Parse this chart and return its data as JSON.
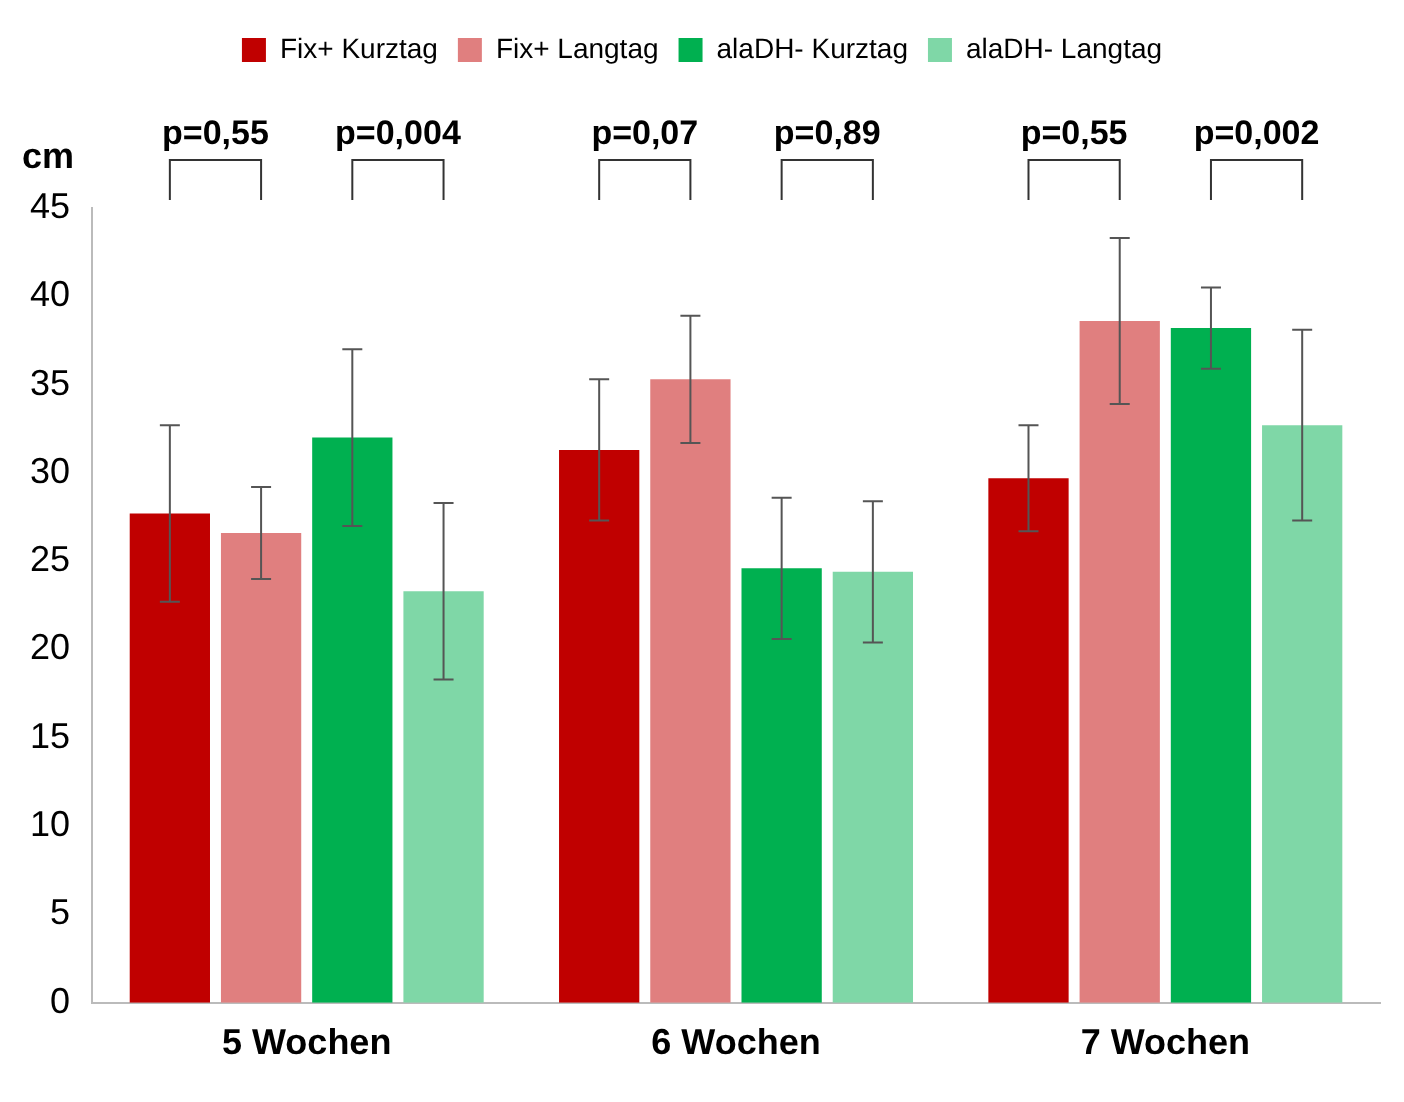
{
  "chart_data": {
    "type": "bar",
    "ylabel": "cm",
    "categories": [
      "5 Wochen",
      "6 Wochen",
      "7 Wochen"
    ],
    "series": [
      {
        "name": "Fix+ Kurztag",
        "color": "#c00000",
        "values": [
          27.7,
          31.3,
          29.7
        ],
        "errors": [
          5,
          4,
          3
        ]
      },
      {
        "name": "Fix+ Langtag",
        "color": "#e07f7f",
        "values": [
          26.6,
          35.3,
          38.6
        ],
        "errors": [
          2.6,
          3.6,
          4.7
        ]
      },
      {
        "name": "alaDH- Kurztag",
        "color": "#00b050",
        "values": [
          32,
          24.6,
          38.2
        ],
        "errors": [
          5,
          4,
          2.3
        ]
      },
      {
        "name": "alaDH- Langtag",
        "color": "#7fd7a7",
        "values": [
          23.3,
          24.4,
          32.7
        ],
        "errors": [
          5,
          4,
          5.4
        ]
      }
    ],
    "annotations": [
      "p=0,55",
      "p=0,004",
      "p=0,07",
      "p=0,89",
      "p=0,55",
      "p=0,002"
    ],
    "ylim": [
      0,
      45
    ],
    "yticks": [
      0,
      5,
      10,
      15,
      20,
      25,
      30,
      35,
      40,
      45
    ],
    "grid": false,
    "legend": "top"
  }
}
